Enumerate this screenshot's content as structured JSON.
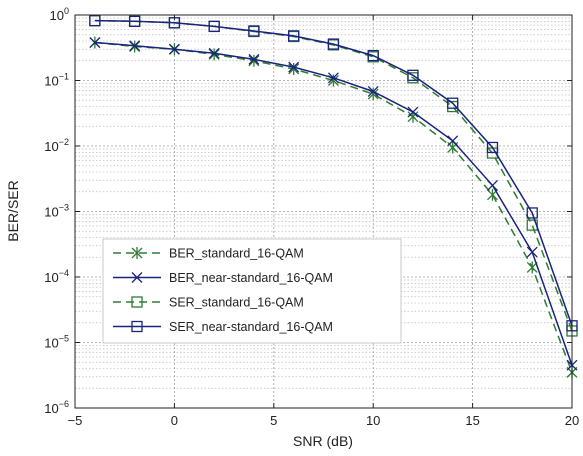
{
  "chart_data": {
    "type": "line",
    "title": "",
    "xlabel": "SNR (dB)",
    "ylabel": "BER/SER",
    "xlim": [
      -5,
      20
    ],
    "ylim": [
      1e-06,
      1
    ],
    "yscale": "log",
    "grid": true,
    "x_ticks": [
      "−5",
      "0",
      "5",
      "10",
      "15",
      "20"
    ],
    "y_ticks": [
      {
        "base": "10",
        "exp": "0"
      },
      {
        "base": "10",
        "exp": "−1"
      },
      {
        "base": "10",
        "exp": "−2"
      },
      {
        "base": "10",
        "exp": "−3"
      },
      {
        "base": "10",
        "exp": "−4"
      },
      {
        "base": "10",
        "exp": "−5"
      },
      {
        "base": "10",
        "exp": "−6"
      }
    ],
    "legend_position": "lower-left",
    "x": [
      -4,
      -2,
      0,
      2,
      4,
      6,
      8,
      10,
      12,
      14,
      16,
      18,
      20
    ],
    "series": [
      {
        "name": "BER_standard_16-QAM",
        "color": "#2e7d32",
        "dash": "dashed",
        "marker": "asterisk",
        "values": [
          0.38,
          0.33,
          0.3,
          0.25,
          0.2,
          0.15,
          0.1,
          0.062,
          0.028,
          0.0095,
          0.0018,
          0.00014,
          3.5e-06
        ]
      },
      {
        "name": "BER_near-standard_16-QAM",
        "color": "#1a237e",
        "dash": "solid",
        "marker": "x",
        "values": [
          0.38,
          0.34,
          0.3,
          0.26,
          0.21,
          0.16,
          0.11,
          0.068,
          0.033,
          0.012,
          0.0025,
          0.00024,
          4.5e-06
        ]
      },
      {
        "name": "SER_standard_16-QAM",
        "color": "#2e7d32",
        "dash": "dashed",
        "marker": "square",
        "values": [
          0.82,
          0.8,
          0.76,
          0.67,
          0.56,
          0.47,
          0.35,
          0.23,
          0.11,
          0.04,
          0.0078,
          0.00062,
          1.5e-05
        ]
      },
      {
        "name": "SER_near-standard_16-QAM",
        "color": "#1a237e",
        "dash": "solid",
        "marker": "square",
        "values": [
          0.82,
          0.8,
          0.76,
          0.67,
          0.57,
          0.48,
          0.36,
          0.24,
          0.12,
          0.045,
          0.0095,
          0.00095,
          1.8e-05
        ]
      }
    ]
  }
}
